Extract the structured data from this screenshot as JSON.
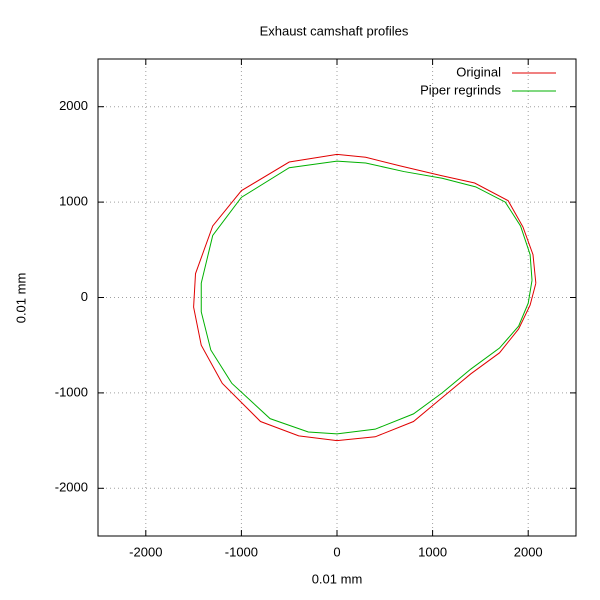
{
  "chart_data": {
    "type": "line",
    "title": "Exhaust camshaft profiles",
    "xlabel": "0.01 mm",
    "ylabel": "0.01 mm",
    "xlim": [
      -2500,
      2500
    ],
    "ylim": [
      -2500,
      2500
    ],
    "xticks": [
      -2000,
      -1000,
      0,
      1000,
      2000
    ],
    "yticks": [
      -2000,
      -1000,
      0,
      1000,
      2000
    ],
    "grid": true,
    "legend": "top-right",
    "series": [
      {
        "name": "Original",
        "color": "#e00000",
        "x": [
          2080,
          2050,
          1945,
          1790,
          1440,
          1080,
          660,
          300,
          0,
          -500,
          -1000,
          -1300,
          -1480,
          -1500,
          -1420,
          -1200,
          -800,
          -400,
          0,
          400,
          800,
          1100,
          1400,
          1700,
          1900,
          2020,
          2080
        ],
        "values": [
          150,
          450,
          740,
          1015,
          1200,
          1280,
          1380,
          1470,
          1500,
          1420,
          1120,
          750,
          250,
          -100,
          -500,
          -900,
          -1300,
          -1450,
          -1500,
          -1460,
          -1300,
          -1050,
          -800,
          -580,
          -330,
          -80,
          150
        ]
      },
      {
        "name": "Piper regrinds",
        "color": "#00b000",
        "x": [
          2040,
          2020,
          1920,
          1760,
          1450,
          1100,
          700,
          300,
          0,
          -500,
          -1000,
          -1300,
          -1420,
          -1420,
          -1320,
          -1100,
          -700,
          -300,
          0,
          400,
          800,
          1100,
          1400,
          1700,
          1900,
          2000,
          2040
        ],
        "values": [
          180,
          450,
          750,
          1000,
          1160,
          1250,
          1320,
          1410,
          1430,
          1360,
          1050,
          650,
          150,
          -150,
          -550,
          -900,
          -1270,
          -1410,
          -1430,
          -1380,
          -1220,
          -1000,
          -750,
          -530,
          -300,
          -60,
          180
        ]
      }
    ]
  }
}
